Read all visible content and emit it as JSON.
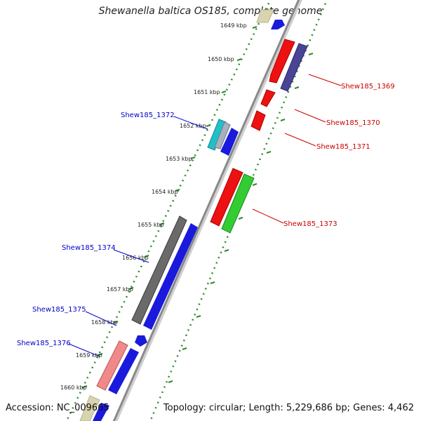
{
  "title": "Shewanella baltica OS185, complete genome",
  "footer": {
    "accession": "Accession: NC_009665",
    "summary": "Topology: circular; Length: 5,229,686 bp; Genes: 4,462"
  },
  "colors": {
    "backbone": "#8a8a8a",
    "ruler_dots": "#2e8b2e",
    "blue_label": "#0000cc",
    "red_label": "#cc0000"
  },
  "ruler": [
    {
      "label": "1649 kbp"
    },
    {
      "label": "1650 kbp"
    },
    {
      "label": "1651 kbp"
    },
    {
      "label": "1652 kbp"
    },
    {
      "label": "1653 kbp"
    },
    {
      "label": "1654 kbp"
    },
    {
      "label": "1655 kbp"
    },
    {
      "label": "1656 kbp"
    },
    {
      "label": "1657 kbp"
    },
    {
      "label": "1658 kbp"
    },
    {
      "label": "1659 kbp"
    },
    {
      "label": "1660 kbp"
    }
  ],
  "gene_labels": [
    {
      "name": "Shew185_1369",
      "color": "#cc0000"
    },
    {
      "name": "Shew185_1370",
      "color": "#cc0000"
    },
    {
      "name": "Shew185_1371",
      "color": "#cc0000"
    },
    {
      "name": "Shew185_1372",
      "color": "#0000cc"
    },
    {
      "name": "Shew185_1373",
      "color": "#cc0000"
    },
    {
      "name": "Shew185_1374",
      "color": "#0000cc"
    },
    {
      "name": "Shew185_1375",
      "color": "#0000cc"
    },
    {
      "name": "Shew185_1376",
      "color": "#0000cc"
    }
  ]
}
